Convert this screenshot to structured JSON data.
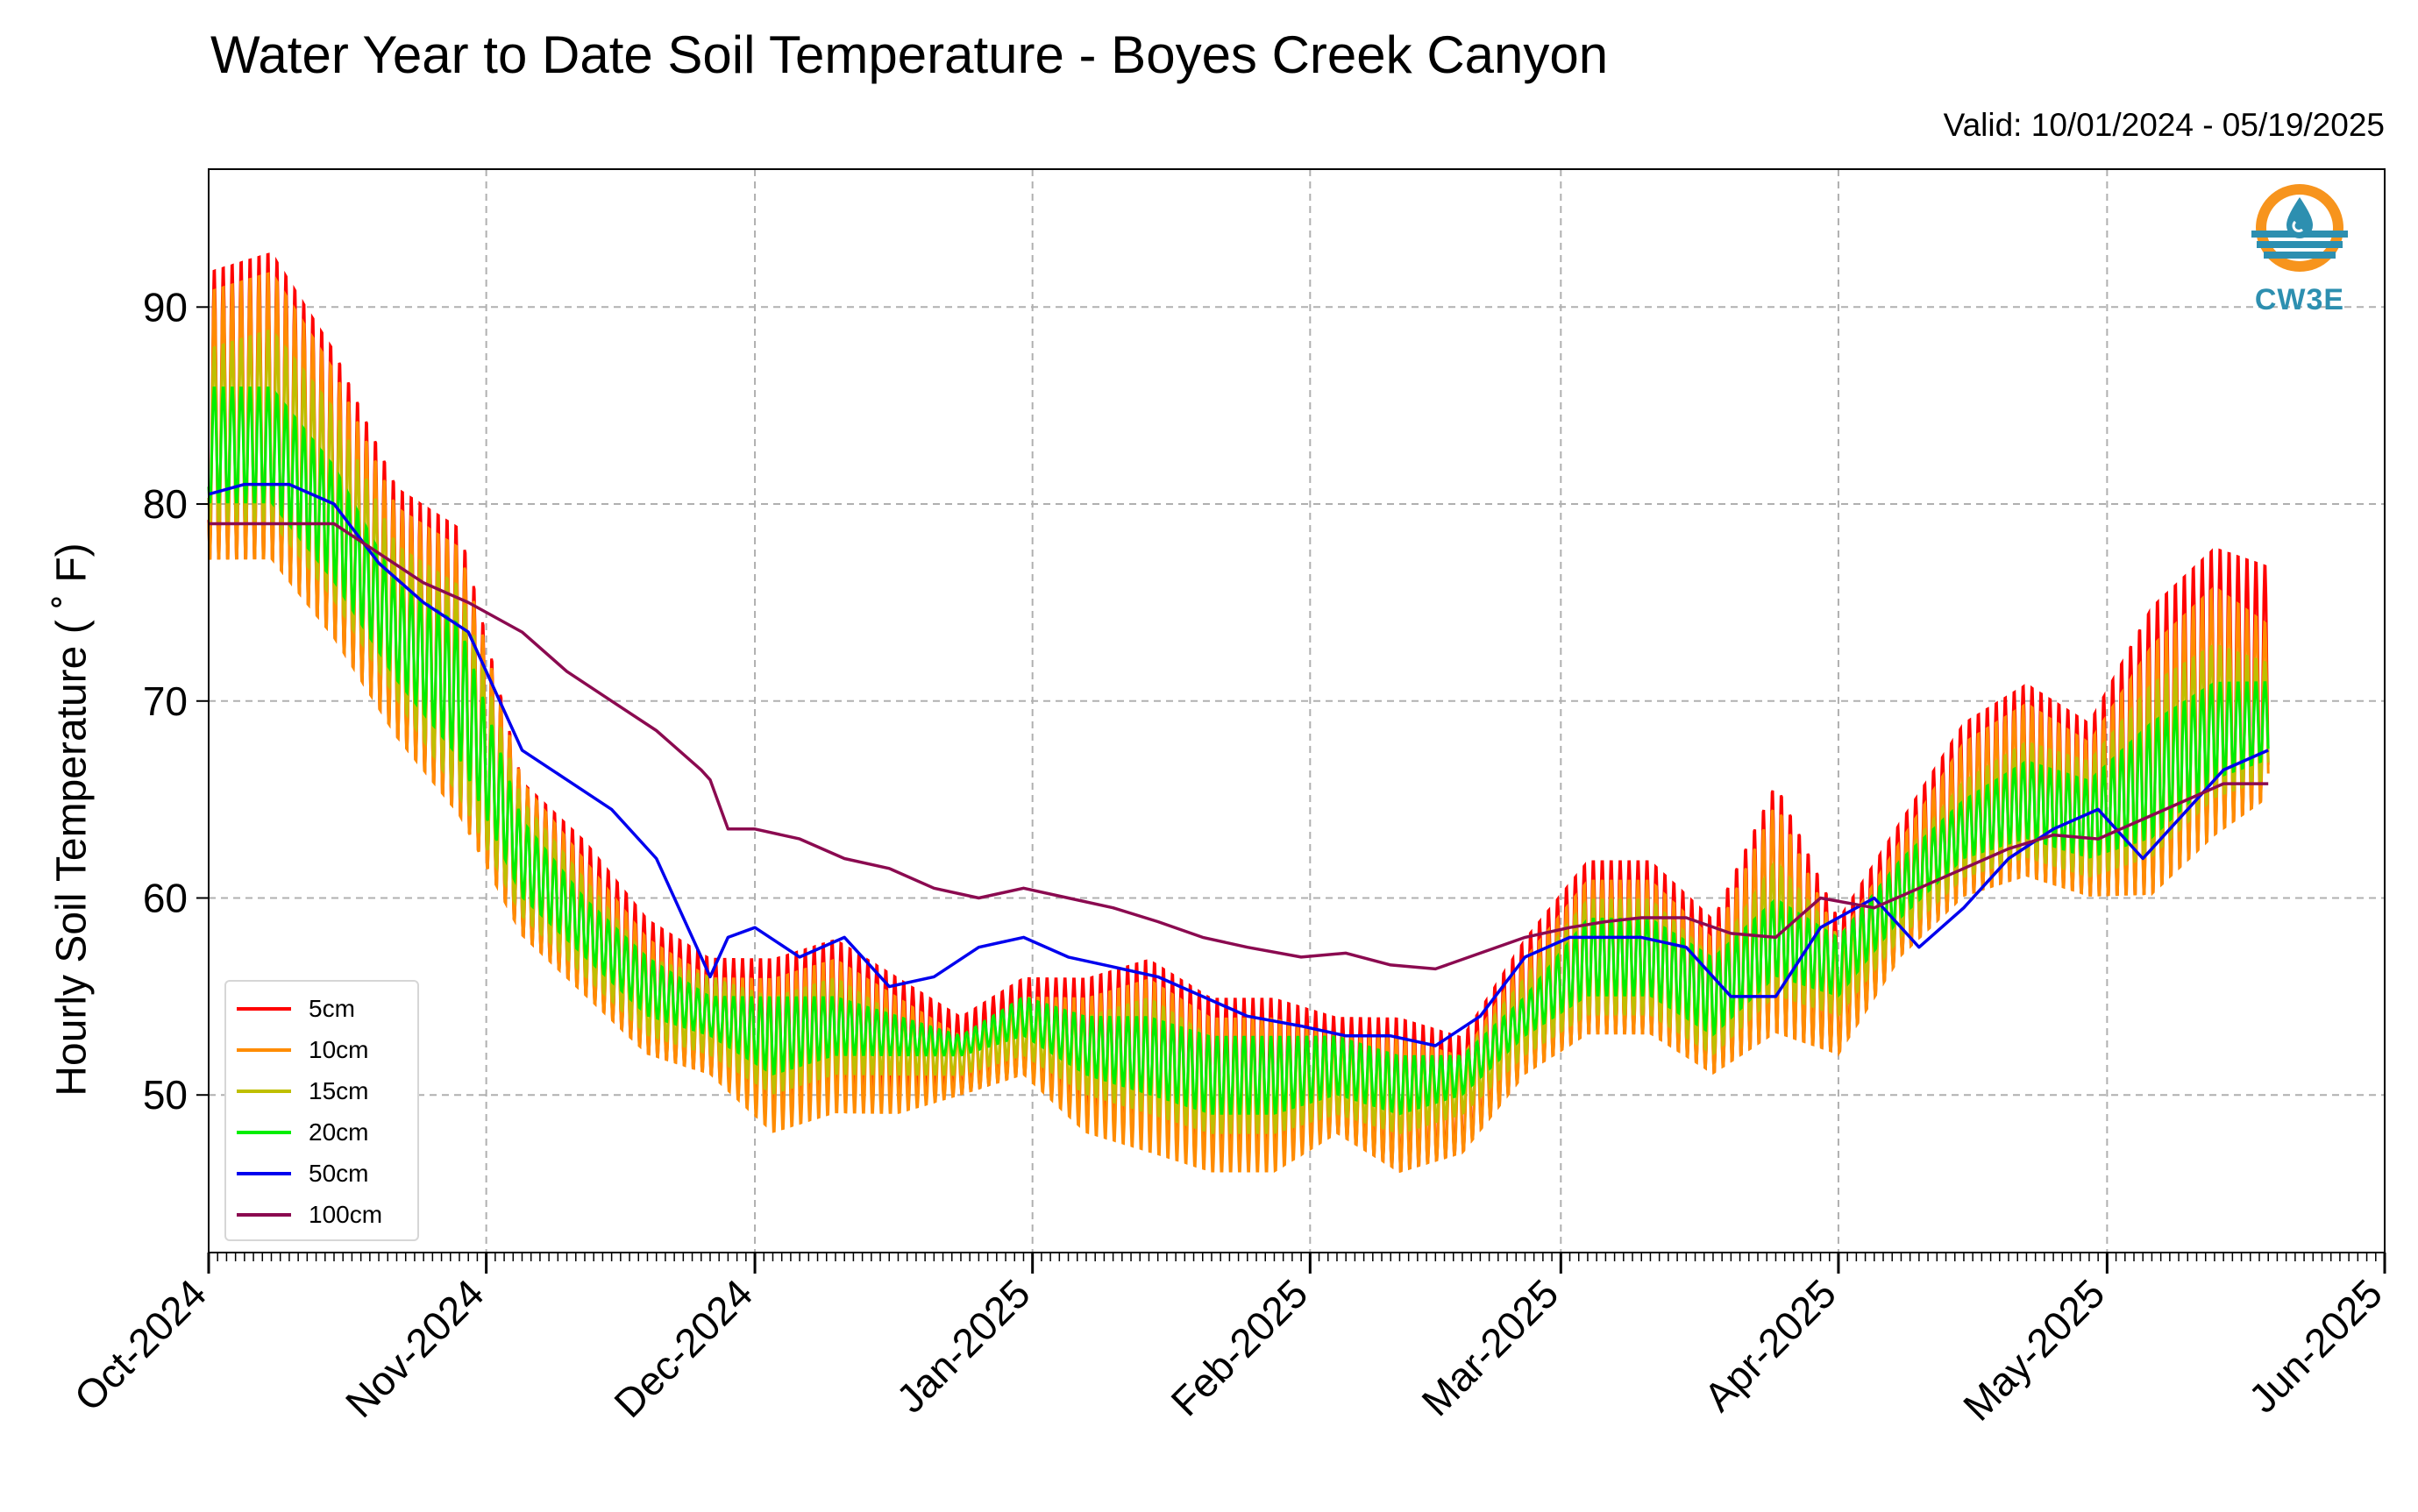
{
  "title": "Water Year to Date Soil Temperature - Boyes Creek Canyon",
  "valid_text": "Valid: 10/01/2024 - 05/19/2025",
  "logo_text": "CW3E",
  "colors": {
    "5cm": "#ff0000",
    "10cm": "#ff8c00",
    "15cm": "#bfbf00",
    "20cm": "#00ee00",
    "50cm": "#0000ee",
    "100cm": "#8b0a50",
    "logo_orange": "#f7941d",
    "logo_teal": "#2d8fb0"
  },
  "chart_data": {
    "type": "line",
    "title": "Water Year to Date Soil Temperature - Boyes Creek Canyon",
    "xlabel": "",
    "ylabel": "Hourly Soil Temperature ($^\\circ$F)",
    "ylabel_display": "Hourly Soil Temperature ( ˚ F)",
    "xlim": [
      "2024-10-01",
      "2025-06-01"
    ],
    "ylim": [
      42,
      97
    ],
    "y_ticks": [
      50,
      60,
      70,
      80,
      90
    ],
    "x_ticks": [
      {
        "date": "2024-10-01",
        "label": "Oct-2024"
      },
      {
        "date": "2024-11-01",
        "label": "Nov-2024"
      },
      {
        "date": "2024-12-01",
        "label": "Dec-2024"
      },
      {
        "date": "2025-01-01",
        "label": "Jan-2025"
      },
      {
        "date": "2025-02-01",
        "label": "Feb-2025"
      },
      {
        "date": "2025-03-01",
        "label": "Mar-2025"
      },
      {
        "date": "2025-04-01",
        "label": "Apr-2025"
      },
      {
        "date": "2025-05-01",
        "label": "May-2025"
      },
      {
        "date": "2025-06-01",
        "label": "Jun-2025"
      }
    ],
    "grid": true,
    "legend_position": "lower-left",
    "shallow_series_note_amplitude": "Shallow sensors oscillate daily between an envelope of daily minima and maxima.",
    "series": [
      {
        "name": "5cm",
        "kind": "diurnal",
        "x": [
          "2024-10-01",
          "2024-10-08",
          "2024-10-15",
          "2024-10-22",
          "2024-10-29",
          "2024-11-05",
          "2024-11-12",
          "2024-11-19",
          "2024-11-26",
          "2024-12-03",
          "2024-12-10",
          "2024-12-17",
          "2024-12-24",
          "2024-12-31",
          "2025-01-07",
          "2025-01-14",
          "2025-01-21",
          "2025-01-28",
          "2025-02-04",
          "2025-02-11",
          "2025-02-18",
          "2025-02-25",
          "2025-03-04",
          "2025-03-11",
          "2025-03-18",
          "2025-03-25",
          "2025-04-01",
          "2025-04-08",
          "2025-04-15",
          "2025-04-22",
          "2025-04-29",
          "2025-05-06",
          "2025-05-13",
          "2025-05-19"
        ],
        "min": [
          77,
          77,
          73,
          68,
          64,
          58,
          55,
          52,
          51,
          49,
          50,
          50,
          50,
          51,
          49,
          48,
          47,
          47,
          48,
          46,
          47,
          51,
          53,
          53,
          51,
          53,
          52,
          57,
          60,
          61,
          60,
          60,
          63,
          65
        ],
        "max": [
          92,
          93,
          88,
          81,
          79,
          66,
          63,
          59,
          57,
          57,
          58,
          56,
          54,
          56,
          56,
          57,
          55,
          55,
          54,
          54,
          53,
          58,
          62,
          62,
          59,
          66,
          59,
          64,
          69,
          71,
          69,
          75,
          78,
          77
        ]
      },
      {
        "name": "10cm",
        "kind": "diurnal",
        "x": [
          "2024-10-01",
          "2024-10-08",
          "2024-10-15",
          "2024-10-22",
          "2024-10-29",
          "2024-11-05",
          "2024-11-12",
          "2024-11-19",
          "2024-11-26",
          "2024-12-03",
          "2024-12-10",
          "2024-12-17",
          "2024-12-24",
          "2024-12-31",
          "2025-01-07",
          "2025-01-14",
          "2025-01-21",
          "2025-01-28",
          "2025-02-04",
          "2025-02-11",
          "2025-02-18",
          "2025-02-25",
          "2025-03-04",
          "2025-03-11",
          "2025-03-18",
          "2025-03-25",
          "2025-04-01",
          "2025-04-08",
          "2025-04-15",
          "2025-04-22",
          "2025-04-29",
          "2025-05-06",
          "2025-05-13",
          "2025-05-19"
        ],
        "min": [
          77,
          77,
          73,
          68,
          64,
          58,
          55,
          52,
          51,
          48,
          49,
          49,
          50,
          51,
          48,
          47,
          46,
          46,
          48,
          46,
          47,
          51,
          53,
          53,
          51,
          53,
          52,
          57,
          60,
          61,
          60,
          60,
          63,
          65
        ],
        "max": [
          91,
          92,
          87,
          80,
          78,
          66,
          62,
          58,
          56,
          56,
          57,
          55,
          53,
          55,
          55,
          56,
          54,
          54,
          53,
          53,
          52,
          57,
          61,
          61,
          58,
          65,
          58,
          63,
          68,
          70,
          68,
          73,
          76,
          74
        ]
      },
      {
        "name": "15cm",
        "kind": "diurnal",
        "x": [
          "2024-10-01",
          "2024-10-08",
          "2024-10-15",
          "2024-10-22",
          "2024-10-29",
          "2024-11-05",
          "2024-11-12",
          "2024-11-19",
          "2024-11-26",
          "2024-12-03",
          "2024-12-10",
          "2024-12-17",
          "2024-12-24",
          "2024-12-31",
          "2025-01-07",
          "2025-01-14",
          "2025-01-21",
          "2025-01-28",
          "2025-02-04",
          "2025-02-11",
          "2025-02-18",
          "2025-02-25",
          "2025-03-04",
          "2025-03-11",
          "2025-03-18",
          "2025-03-25",
          "2025-04-01",
          "2025-04-08",
          "2025-04-15",
          "2025-04-22",
          "2025-04-29",
          "2025-05-06",
          "2025-05-13",
          "2025-05-19"
        ],
        "min": [
          79,
          79,
          75,
          70,
          65,
          59,
          56,
          53,
          52,
          50,
          51,
          51,
          51,
          52,
          50,
          49,
          48,
          48,
          49,
          48,
          49,
          52,
          54,
          54,
          52,
          55,
          54,
          58,
          61,
          62,
          61,
          62,
          65,
          66
        ],
        "max": [
          88,
          89,
          85,
          78,
          76,
          65,
          61,
          57,
          56,
          55,
          56,
          54,
          53,
          55,
          54,
          55,
          53,
          53,
          53,
          52,
          52,
          56,
          60,
          60,
          57,
          62,
          58,
          62,
          66,
          68,
          67,
          71,
          73,
          72
        ]
      },
      {
        "name": "20cm",
        "kind": "diurnal",
        "x": [
          "2024-10-01",
          "2024-10-08",
          "2024-10-15",
          "2024-10-22",
          "2024-10-29",
          "2024-11-05",
          "2024-11-12",
          "2024-11-19",
          "2024-11-26",
          "2024-12-03",
          "2024-12-10",
          "2024-12-17",
          "2024-12-24",
          "2024-12-31",
          "2025-01-07",
          "2025-01-14",
          "2025-01-21",
          "2025-01-28",
          "2025-02-04",
          "2025-02-11",
          "2025-02-18",
          "2025-02-25",
          "2025-03-04",
          "2025-03-11",
          "2025-03-18",
          "2025-03-25",
          "2025-04-01",
          "2025-04-08",
          "2025-04-15",
          "2025-04-22",
          "2025-04-29",
          "2025-05-06",
          "2025-05-13",
          "2025-05-19"
        ],
        "min": [
          80,
          80,
          76,
          71,
          67,
          60,
          57,
          54,
          53,
          51,
          52,
          52,
          52,
          53,
          51,
          50,
          49,
          49,
          50,
          49,
          50,
          53,
          55,
          55,
          53,
          56,
          55,
          59,
          62,
          63,
          62,
          63,
          66,
          67
        ],
        "max": [
          86,
          86,
          82,
          76,
          74,
          64,
          60,
          57,
          55,
          55,
          55,
          54,
          53,
          55,
          54,
          54,
          53,
          53,
          53,
          52,
          52,
          55,
          59,
          59,
          57,
          60,
          58,
          62,
          65,
          67,
          66,
          69,
          71,
          71
        ]
      },
      {
        "name": "50cm",
        "kind": "smooth",
        "x": [
          "2024-10-01",
          "2024-10-05",
          "2024-10-10",
          "2024-10-15",
          "2024-10-20",
          "2024-10-25",
          "2024-10-30",
          "2024-11-05",
          "2024-11-10",
          "2024-11-15",
          "2024-11-20",
          "2024-11-24",
          "2024-11-26",
          "2024-11-28",
          "2024-12-01",
          "2024-12-06",
          "2024-12-11",
          "2024-12-16",
          "2024-12-21",
          "2024-12-26",
          "2024-12-31",
          "2025-01-05",
          "2025-01-10",
          "2025-01-15",
          "2025-01-20",
          "2025-01-25",
          "2025-01-31",
          "2025-02-05",
          "2025-02-10",
          "2025-02-15",
          "2025-02-20",
          "2025-02-25",
          "2025-03-02",
          "2025-03-06",
          "2025-03-10",
          "2025-03-15",
          "2025-03-20",
          "2025-03-25",
          "2025-03-30",
          "2025-04-05",
          "2025-04-10",
          "2025-04-15",
          "2025-04-20",
          "2025-04-25",
          "2025-04-30",
          "2025-05-05",
          "2025-05-10",
          "2025-05-14",
          "2025-05-19"
        ],
        "y": [
          80.5,
          81,
          81,
          80,
          77,
          75,
          73.5,
          67.5,
          66,
          64.5,
          62,
          58,
          56,
          58,
          58.5,
          57,
          58,
          55.5,
          56,
          57.5,
          58,
          57,
          56.5,
          56,
          55,
          54,
          53.5,
          53,
          53,
          52.5,
          54,
          57,
          58,
          58,
          58,
          57.5,
          55,
          55,
          58.5,
          60,
          57.5,
          59.5,
          62,
          63.5,
          64.5,
          62,
          64.5,
          66.5,
          67.5
        ]
      },
      {
        "name": "100cm",
        "kind": "smooth",
        "x": [
          "2024-10-01",
          "2024-10-05",
          "2024-10-10",
          "2024-10-15",
          "2024-10-20",
          "2024-10-25",
          "2024-10-30",
          "2024-11-05",
          "2024-11-10",
          "2024-11-15",
          "2024-11-20",
          "2024-11-25",
          "2024-11-26",
          "2024-11-28",
          "2024-12-01",
          "2024-12-06",
          "2024-12-11",
          "2024-12-16",
          "2024-12-21",
          "2024-12-26",
          "2024-12-31",
          "2025-01-05",
          "2025-01-10",
          "2025-01-15",
          "2025-01-20",
          "2025-01-25",
          "2025-01-31",
          "2025-02-05",
          "2025-02-10",
          "2025-02-15",
          "2025-02-20",
          "2025-02-25",
          "2025-03-02",
          "2025-03-06",
          "2025-03-10",
          "2025-03-15",
          "2025-03-20",
          "2025-03-25",
          "2025-03-30",
          "2025-04-05",
          "2025-04-10",
          "2025-04-15",
          "2025-04-20",
          "2025-04-25",
          "2025-04-30",
          "2025-05-05",
          "2025-05-10",
          "2025-05-14",
          "2025-05-19"
        ],
        "y": [
          79,
          79,
          79,
          79,
          77.5,
          76,
          75,
          73.5,
          71.5,
          70,
          68.5,
          66.5,
          66,
          63.5,
          63.5,
          63,
          62,
          61.5,
          60.5,
          60,
          60.5,
          60,
          59.5,
          58.8,
          58,
          57.5,
          57,
          57.2,
          56.6,
          56.4,
          57.2,
          58,
          58.5,
          58.8,
          59,
          59,
          58.2,
          58,
          60,
          59.5,
          60.5,
          61.5,
          62.5,
          63.2,
          63,
          64,
          65,
          65.8,
          65.8
        ]
      }
    ]
  }
}
